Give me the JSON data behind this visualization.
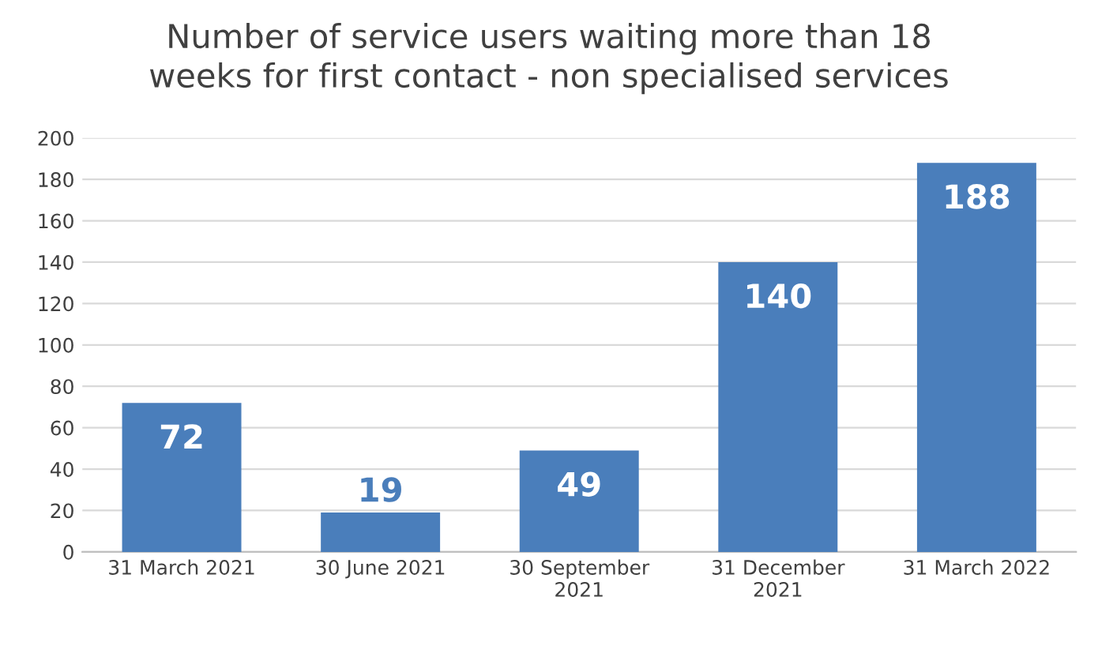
{
  "chart_data": {
    "type": "bar",
    "title": "Number of service users waiting more than 18\nweeks for first contact - non specialised services",
    "categories": [
      "31 March 2021",
      "30 June 2021",
      "30 September\n2021",
      "31 December\n2021",
      "31 March 2022"
    ],
    "values": [
      72,
      19,
      49,
      140,
      188
    ],
    "color": "#4a7ebb",
    "ylim": [
      0,
      200
    ],
    "yticks": [
      0,
      20,
      40,
      60,
      80,
      100,
      120,
      140,
      160,
      180,
      200
    ],
    "grid": "y",
    "data_labels": true
  }
}
